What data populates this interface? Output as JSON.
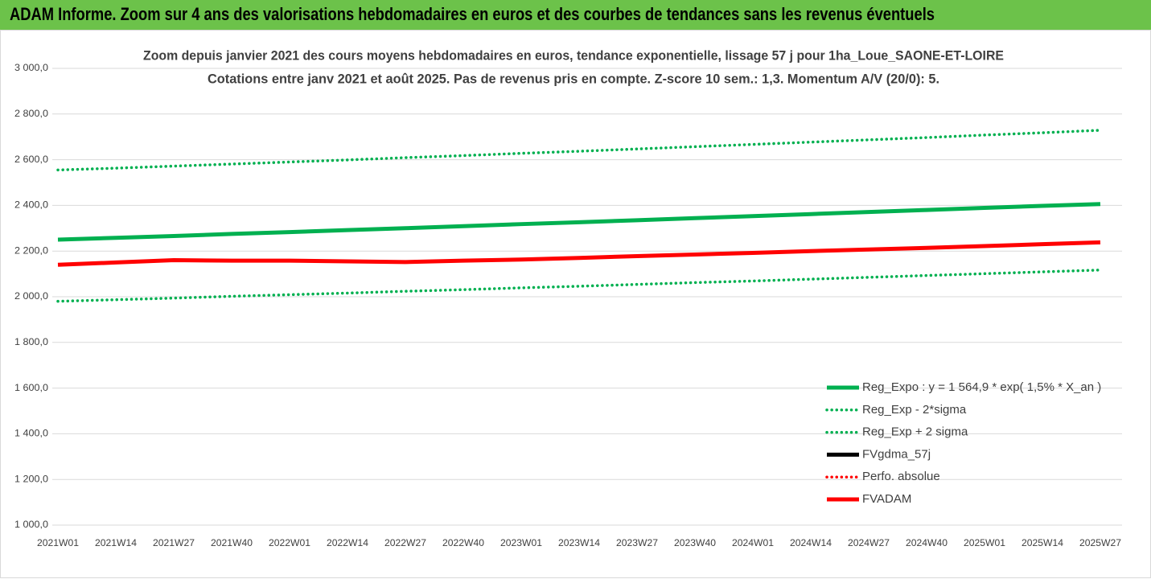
{
  "chart_data": {
    "type": "line",
    "title": "ADAM Informe. Zoom sur 4 ans des valorisations hebdomadaires en euros et des courbes de tendances sans les revenus éventuels",
    "subtitle": [
      "Zoom depuis janvier 2021 des cours moyens hebdomadaires en euros, tendance exponentielle, lissage 57 j pour 1ha_Loue_SAONE-ET-LOIRE",
      "Cotations entre janv 2021 et août 2025.  Pas de revenus pris en compte. Z-score 10 sem.: 1,3. Momentum A/V (20/0): 5."
    ],
    "categories": [
      "2021W01",
      "2021W14",
      "2021W27",
      "2021W40",
      "2022W01",
      "2022W14",
      "2022W27",
      "2022W40",
      "2023W01",
      "2023W14",
      "2023W27",
      "2023W40",
      "2024W01",
      "2024W14",
      "2024W27",
      "2024W40",
      "2025W01",
      "2025W14",
      "2025W27"
    ],
    "series": [
      {
        "name": "Reg_Expo : y = 1 564,9 * exp( 1,5% *  X_an )",
        "color": "#00b050",
        "line_style": "solid",
        "values": [
          2250,
          2258,
          2266,
          2275,
          2283,
          2292,
          2300,
          2309,
          2318,
          2326,
          2335,
          2344,
          2353,
          2362,
          2371,
          2380,
          2389,
          2398,
          2406
        ]
      },
      {
        "name": "Reg_Exp - 2*sigma",
        "color": "#00b050",
        "line_style": "dotted",
        "values": [
          1980,
          1987,
          1994,
          2002,
          2009,
          2016,
          2024,
          2031,
          2039,
          2046,
          2054,
          2062,
          2069,
          2077,
          2085,
          2093,
          2101,
          2109,
          2117
        ]
      },
      {
        "name": "Reg_Exp + 2 sigma",
        "color": "#00b050",
        "line_style": "dotted",
        "values": [
          2555,
          2563,
          2572,
          2581,
          2590,
          2599,
          2609,
          2618,
          2628,
          2637,
          2647,
          2657,
          2667,
          2677,
          2687,
          2697,
          2708,
          2718,
          2729
        ]
      },
      {
        "name": "FVgdma_57j",
        "color": "#000000",
        "line_style": "solid",
        "values": [
          null,
          null,
          null,
          null,
          null,
          null,
          null,
          null,
          null,
          null,
          null,
          null,
          null,
          null,
          null,
          null,
          null,
          null,
          null
        ]
      },
      {
        "name": "Perfo. absolue",
        "color": "#ff0000",
        "line_style": "dotted",
        "values": [
          null,
          null,
          null,
          null,
          null,
          null,
          null,
          null,
          null,
          null,
          null,
          null,
          null,
          null,
          null,
          null,
          null,
          null,
          null
        ]
      },
      {
        "name": "FVADAM",
        "color": "#ff0000",
        "line_style": "solid",
        "values": [
          2140,
          2150,
          2160,
          2158,
          2158,
          2155,
          2152,
          2158,
          2163,
          2170,
          2178,
          2185,
          2192,
          2200,
          2207,
          2214,
          2222,
          2230,
          2238
        ]
      }
    ],
    "ylim": [
      1000,
      3000
    ],
    "yticks": [
      {
        "value": 1000,
        "label": "1 000,0"
      },
      {
        "value": 1200,
        "label": "1 200,0"
      },
      {
        "value": 1400,
        "label": "1 400,0"
      },
      {
        "value": 1600,
        "label": "1 600,0"
      },
      {
        "value": 1800,
        "label": "1 800,0"
      },
      {
        "value": 2000,
        "label": "2 000,0"
      },
      {
        "value": 2200,
        "label": "2 200,0"
      },
      {
        "value": 2400,
        "label": "2 400,0"
      },
      {
        "value": 2600,
        "label": "2 600,0"
      },
      {
        "value": 2800,
        "label": "2 800,0"
      },
      {
        "value": 3000,
        "label": "3 000,0"
      }
    ],
    "grid": true,
    "legend": "lower right"
  }
}
